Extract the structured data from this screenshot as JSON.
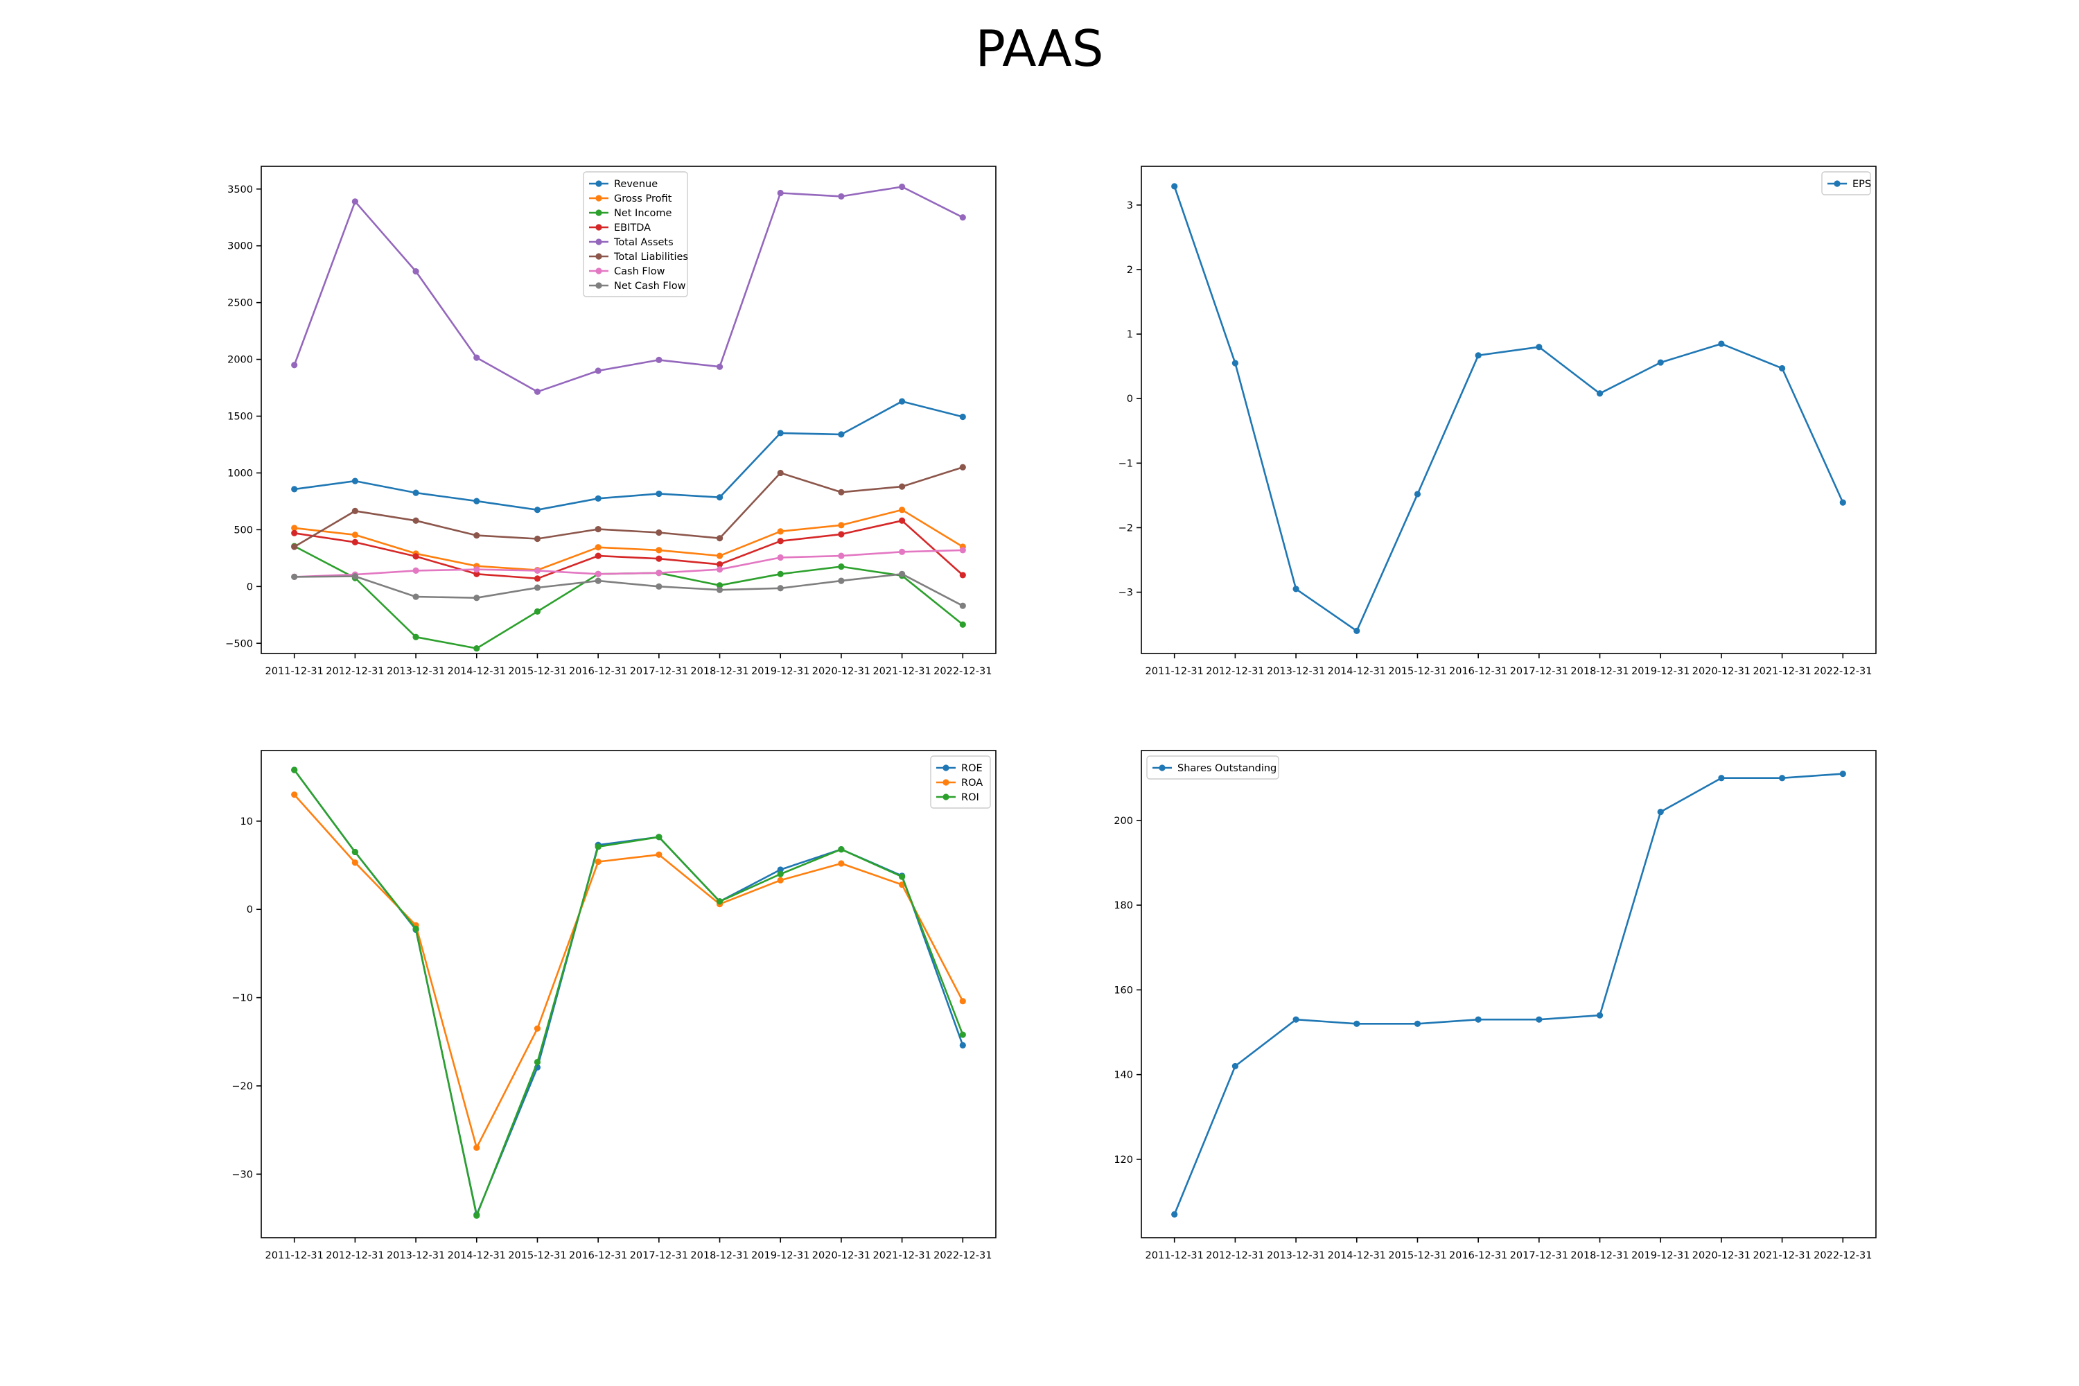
{
  "title": "PAAS",
  "chart_data": [
    {
      "type": "line",
      "x": [
        "2011-12-31",
        "2012-12-31",
        "2013-12-31",
        "2014-12-31",
        "2015-12-31",
        "2016-12-31",
        "2017-12-31",
        "2018-12-31",
        "2019-12-31",
        "2020-12-31",
        "2021-12-31",
        "2022-12-31"
      ],
      "ylim": [
        -590,
        3700
      ],
      "yticks": [
        -500,
        0,
        500,
        1000,
        1500,
        2000,
        2500,
        3000,
        3500
      ],
      "legend": "top-center",
      "grid": false,
      "series": [
        {
          "name": "Revenue",
          "color": "#1f77b4",
          "values": [
            857,
            929,
            825,
            752,
            675,
            775,
            817,
            785,
            1351,
            1339,
            1630,
            1494
          ]
        },
        {
          "name": "Gross Profit",
          "color": "#ff7f0e",
          "values": [
            515,
            455,
            290,
            180,
            145,
            345,
            320,
            270,
            485,
            540,
            675,
            350
          ]
        },
        {
          "name": "Net Income",
          "color": "#2ca02c",
          "values": [
            355,
            75,
            -445,
            -545,
            -220,
            110,
            120,
            10,
            110,
            175,
            95,
            -335
          ]
        },
        {
          "name": "EBITDA",
          "color": "#d62728",
          "values": [
            470,
            390,
            265,
            110,
            70,
            270,
            245,
            195,
            400,
            460,
            580,
            100
          ]
        },
        {
          "name": "Total Assets",
          "color": "#9467bd",
          "values": [
            1950,
            3390,
            2775,
            2015,
            1715,
            1900,
            1995,
            1935,
            3465,
            3435,
            3520,
            3250
          ]
        },
        {
          "name": "Total Liabilities",
          "color": "#8c564b",
          "values": [
            350,
            665,
            580,
            450,
            420,
            505,
            475,
            425,
            1000,
            830,
            880,
            1050
          ]
        },
        {
          "name": "Cash Flow",
          "color": "#e377c2",
          "values": [
            85,
            105,
            140,
            150,
            140,
            110,
            120,
            150,
            255,
            270,
            305,
            320
          ]
        },
        {
          "name": "Net Cash Flow",
          "color": "#7f7f7f",
          "values": [
            85,
            90,
            -90,
            -100,
            -10,
            50,
            0,
            -30,
            -15,
            50,
            110,
            -170
          ]
        }
      ]
    },
    {
      "type": "line",
      "x": [
        "2011-12-31",
        "2012-12-31",
        "2013-12-31",
        "2014-12-31",
        "2015-12-31",
        "2016-12-31",
        "2017-12-31",
        "2018-12-31",
        "2019-12-31",
        "2020-12-31",
        "2021-12-31",
        "2022-12-31"
      ],
      "ylim": [
        -3.95,
        3.6
      ],
      "yticks": [
        -3,
        -2,
        -1,
        0,
        1,
        2,
        3
      ],
      "legend": "top-right",
      "grid": false,
      "series": [
        {
          "name": "EPS",
          "color": "#1f77b4",
          "values": [
            3.29,
            0.55,
            -2.95,
            -3.6,
            -1.48,
            0.67,
            0.8,
            0.08,
            0.56,
            0.85,
            0.47,
            -1.61
          ]
        }
      ]
    },
    {
      "type": "line",
      "x": [
        "2011-12-31",
        "2012-12-31",
        "2013-12-31",
        "2014-12-31",
        "2015-12-31",
        "2016-12-31",
        "2017-12-31",
        "2018-12-31",
        "2019-12-31",
        "2020-12-31",
        "2021-12-31",
        "2022-12-31"
      ],
      "ylim": [
        -37.2,
        18
      ],
      "yticks": [
        -30,
        -20,
        -10,
        0,
        10
      ],
      "legend": "top-right",
      "grid": false,
      "series": [
        {
          "name": "ROE",
          "color": "#1f77b4",
          "values": [
            15.8,
            6.5,
            -2.3,
            -34.6,
            -17.9,
            7.3,
            8.2,
            0.9,
            4.5,
            6.8,
            3.8,
            -15.4
          ]
        },
        {
          "name": "ROA",
          "color": "#ff7f0e",
          "values": [
            13.0,
            5.3,
            -1.8,
            -27.0,
            -13.5,
            5.4,
            6.2,
            0.6,
            3.3,
            5.2,
            2.8,
            -10.4
          ]
        },
        {
          "name": "ROI",
          "color": "#2ca02c",
          "values": [
            15.8,
            6.5,
            -2.2,
            -34.7,
            -17.3,
            7.1,
            8.2,
            0.9,
            4.0,
            6.8,
            3.7,
            -14.2
          ]
        }
      ]
    },
    {
      "type": "line",
      "x": [
        "2011-12-31",
        "2012-12-31",
        "2013-12-31",
        "2014-12-31",
        "2015-12-31",
        "2016-12-31",
        "2017-12-31",
        "2018-12-31",
        "2019-12-31",
        "2020-12-31",
        "2021-12-31",
        "2022-12-31"
      ],
      "ylim": [
        101.5,
        216.5
      ],
      "yticks": [
        120,
        140,
        160,
        180,
        200
      ],
      "legend": "top-left",
      "grid": false,
      "series": [
        {
          "name": "Shares Outstanding",
          "color": "#1f77b4",
          "values": [
            107,
            142,
            153,
            152,
            152,
            153,
            153,
            154,
            202,
            210,
            210,
            211
          ]
        }
      ]
    }
  ]
}
